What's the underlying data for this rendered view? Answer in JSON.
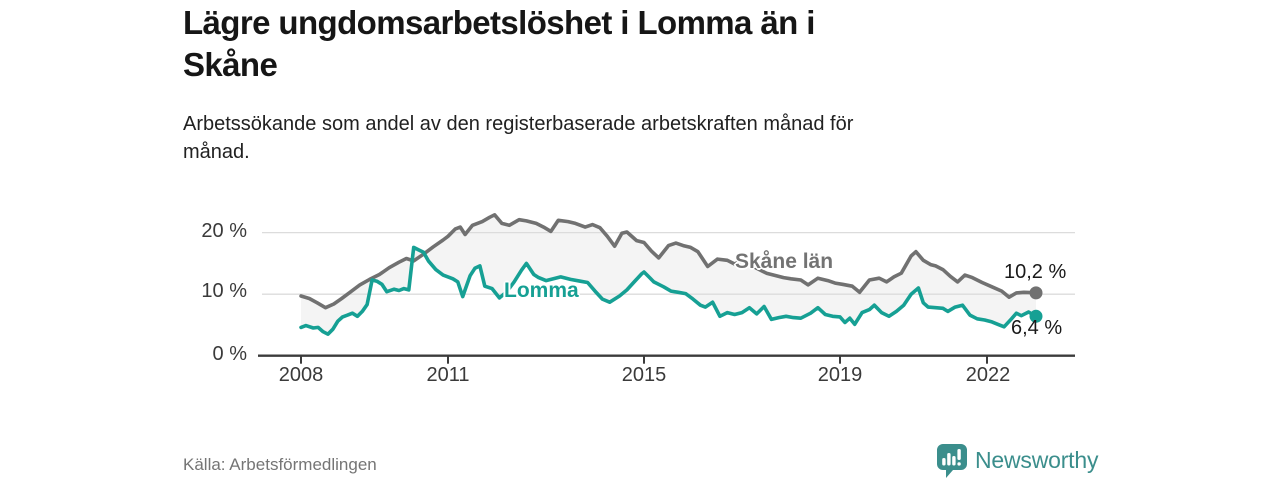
{
  "header": {
    "title": "Lägre ungdomsarbetslöshet i Lomma än i\nSkåne",
    "subtitle": "Arbetssökande som andel av den registerbaserade arbetskraften månad för\nmånad."
  },
  "footer": {
    "source": "Källa: Arbetsförmedlingen",
    "brand": "Newsworthy",
    "brand_color": "#3b8e8c"
  },
  "chart_data": {
    "type": "line",
    "title": "Lägre ungdomsarbetslöshet i Lomma än i Skåne",
    "ylabel": "Arbetssökande som andel av den registerbaserade arbetskraften",
    "x_unit": "månad (decimalår)",
    "ylim": [
      0,
      24
    ],
    "xlim": [
      2008,
      2023.3
    ],
    "grid": "horizontal",
    "yticks": [
      "0 %",
      "10 %",
      "20 %"
    ],
    "xticks": [
      "2008",
      "2011",
      "2015",
      "2019",
      "2022"
    ],
    "fill_between_color": "#f4f4f4",
    "axis_color": "#3b3b3b",
    "gridline_color": "#dcdcdc",
    "series": [
      {
        "name": "Skåne län",
        "color": "#717171",
        "end_label": "10,2 %",
        "end_value": 10.2,
        "points": [
          [
            2008.0,
            9.7
          ],
          [
            2008.17,
            9.3
          ],
          [
            2008.33,
            8.6
          ],
          [
            2008.5,
            7.8
          ],
          [
            2008.67,
            8.4
          ],
          [
            2008.83,
            9.3
          ],
          [
            2009.0,
            10.3
          ],
          [
            2009.2,
            11.5
          ],
          [
            2009.4,
            12.4
          ],
          [
            2009.6,
            13.2
          ],
          [
            2009.8,
            14.3
          ],
          [
            2010.0,
            15.2
          ],
          [
            2010.15,
            15.8
          ],
          [
            2010.3,
            15.4
          ],
          [
            2010.5,
            16.5
          ],
          [
            2010.7,
            17.7
          ],
          [
            2010.9,
            18.8
          ],
          [
            2011.0,
            19.4
          ],
          [
            2011.15,
            20.6
          ],
          [
            2011.25,
            20.9
          ],
          [
            2011.35,
            19.7
          ],
          [
            2011.5,
            21.2
          ],
          [
            2011.7,
            21.8
          ],
          [
            2011.85,
            22.5
          ],
          [
            2011.95,
            22.9
          ],
          [
            2012.1,
            21.5
          ],
          [
            2012.25,
            21.2
          ],
          [
            2012.45,
            22.1
          ],
          [
            2012.6,
            21.9
          ],
          [
            2012.8,
            21.5
          ],
          [
            2012.95,
            20.9
          ],
          [
            2013.1,
            20.2
          ],
          [
            2013.25,
            22.0
          ],
          [
            2013.45,
            21.8
          ],
          [
            2013.6,
            21.5
          ],
          [
            2013.8,
            20.9
          ],
          [
            2013.95,
            21.3
          ],
          [
            2014.1,
            20.8
          ],
          [
            2014.25,
            19.4
          ],
          [
            2014.4,
            17.8
          ],
          [
            2014.55,
            19.9
          ],
          [
            2014.65,
            20.1
          ],
          [
            2014.85,
            18.7
          ],
          [
            2015.0,
            18.4
          ],
          [
            2015.15,
            17.0
          ],
          [
            2015.3,
            15.9
          ],
          [
            2015.5,
            17.9
          ],
          [
            2015.65,
            18.3
          ],
          [
            2015.8,
            17.9
          ],
          [
            2015.95,
            17.6
          ],
          [
            2016.1,
            16.9
          ],
          [
            2016.3,
            14.5
          ],
          [
            2016.5,
            15.7
          ],
          [
            2016.7,
            15.5
          ],
          [
            2016.85,
            14.9
          ],
          [
            2016.95,
            15.3
          ],
          [
            2017.1,
            15.2
          ],
          [
            2017.3,
            14.2
          ],
          [
            2017.5,
            13.4
          ],
          [
            2017.7,
            13.0
          ],
          [
            2017.85,
            12.7
          ],
          [
            2018.0,
            12.5
          ],
          [
            2018.2,
            12.3
          ],
          [
            2018.35,
            11.5
          ],
          [
            2018.55,
            12.6
          ],
          [
            2018.75,
            12.2
          ],
          [
            2018.9,
            11.8
          ],
          [
            2019.05,
            11.6
          ],
          [
            2019.25,
            11.3
          ],
          [
            2019.4,
            10.3
          ],
          [
            2019.6,
            12.3
          ],
          [
            2019.8,
            12.6
          ],
          [
            2019.95,
            12.0
          ],
          [
            2020.1,
            12.8
          ],
          [
            2020.25,
            13.4
          ],
          [
            2020.45,
            16.2
          ],
          [
            2020.55,
            16.9
          ],
          [
            2020.7,
            15.5
          ],
          [
            2020.85,
            14.8
          ],
          [
            2020.95,
            14.6
          ],
          [
            2021.1,
            14.0
          ],
          [
            2021.25,
            12.9
          ],
          [
            2021.4,
            12.0
          ],
          [
            2021.55,
            13.1
          ],
          [
            2021.7,
            12.7
          ],
          [
            2021.9,
            11.9
          ],
          [
            2022.1,
            11.2
          ],
          [
            2022.3,
            10.5
          ],
          [
            2022.45,
            9.5
          ],
          [
            2022.6,
            10.2
          ],
          [
            2022.75,
            10.3
          ],
          [
            2022.9,
            10.25
          ],
          [
            2023.0,
            10.2
          ]
        ]
      },
      {
        "name": "Lomma",
        "color": "#16a094",
        "end_label": "6,4 %",
        "end_value": 6.4,
        "points": [
          [
            2008.0,
            4.6
          ],
          [
            2008.1,
            4.9
          ],
          [
            2008.25,
            4.5
          ],
          [
            2008.35,
            4.6
          ],
          [
            2008.45,
            3.9
          ],
          [
            2008.55,
            3.5
          ],
          [
            2008.65,
            4.3
          ],
          [
            2008.75,
            5.6
          ],
          [
            2008.85,
            6.3
          ],
          [
            2008.95,
            6.6
          ],
          [
            2009.05,
            6.9
          ],
          [
            2009.15,
            6.4
          ],
          [
            2009.25,
            7.2
          ],
          [
            2009.35,
            8.3
          ],
          [
            2009.45,
            12.3
          ],
          [
            2009.55,
            12.1
          ],
          [
            2009.65,
            11.6
          ],
          [
            2009.75,
            10.4
          ],
          [
            2009.9,
            10.8
          ],
          [
            2010.0,
            10.6
          ],
          [
            2010.1,
            10.9
          ],
          [
            2010.2,
            10.7
          ],
          [
            2010.3,
            17.6
          ],
          [
            2010.4,
            17.2
          ],
          [
            2010.5,
            16.8
          ],
          [
            2010.6,
            15.4
          ],
          [
            2010.75,
            14.0
          ],
          [
            2010.9,
            13.1
          ],
          [
            2011.0,
            12.8
          ],
          [
            2011.1,
            12.5
          ],
          [
            2011.2,
            12.0
          ],
          [
            2011.3,
            9.6
          ],
          [
            2011.45,
            13.0
          ],
          [
            2011.55,
            14.2
          ],
          [
            2011.65,
            14.6
          ],
          [
            2011.75,
            11.3
          ],
          [
            2011.9,
            10.9
          ],
          [
            2012.05,
            9.4
          ],
          [
            2012.2,
            10.4
          ],
          [
            2012.35,
            12.0
          ],
          [
            2012.5,
            13.9
          ],
          [
            2012.6,
            15.0
          ],
          [
            2012.75,
            13.2
          ],
          [
            2012.85,
            12.7
          ],
          [
            2013.0,
            12.2
          ],
          [
            2013.15,
            12.5
          ],
          [
            2013.3,
            12.8
          ],
          [
            2013.5,
            12.4
          ],
          [
            2013.7,
            12.1
          ],
          [
            2013.85,
            11.9
          ],
          [
            2014.0,
            10.5
          ],
          [
            2014.15,
            9.2
          ],
          [
            2014.3,
            8.7
          ],
          [
            2014.5,
            9.7
          ],
          [
            2014.65,
            10.7
          ],
          [
            2014.8,
            12.0
          ],
          [
            2014.95,
            13.3
          ],
          [
            2015.0,
            13.6
          ],
          [
            2015.1,
            12.8
          ],
          [
            2015.2,
            12.0
          ],
          [
            2015.4,
            11.2
          ],
          [
            2015.55,
            10.5
          ],
          [
            2015.7,
            10.3
          ],
          [
            2015.85,
            10.1
          ],
          [
            2016.0,
            9.2
          ],
          [
            2016.15,
            8.2
          ],
          [
            2016.25,
            7.9
          ],
          [
            2016.4,
            8.7
          ],
          [
            2016.55,
            6.4
          ],
          [
            2016.7,
            7.0
          ],
          [
            2016.85,
            6.7
          ],
          [
            2017.0,
            7.0
          ],
          [
            2017.15,
            7.8
          ],
          [
            2017.3,
            6.8
          ],
          [
            2017.45,
            8.0
          ],
          [
            2017.6,
            5.9
          ],
          [
            2017.75,
            6.2
          ],
          [
            2017.9,
            6.4
          ],
          [
            2018.05,
            6.2
          ],
          [
            2018.2,
            6.1
          ],
          [
            2018.4,
            6.9
          ],
          [
            2018.55,
            7.8
          ],
          [
            2018.7,
            6.7
          ],
          [
            2018.85,
            6.4
          ],
          [
            2019.0,
            6.3
          ],
          [
            2019.1,
            5.4
          ],
          [
            2019.2,
            6.1
          ],
          [
            2019.3,
            5.1
          ],
          [
            2019.45,
            7.0
          ],
          [
            2019.6,
            7.5
          ],
          [
            2019.7,
            8.2
          ],
          [
            2019.85,
            7.0
          ],
          [
            2020.0,
            6.4
          ],
          [
            2020.15,
            7.2
          ],
          [
            2020.3,
            8.2
          ],
          [
            2020.45,
            10.0
          ],
          [
            2020.6,
            11.0
          ],
          [
            2020.7,
            8.6
          ],
          [
            2020.8,
            7.9
          ],
          [
            2020.95,
            7.8
          ],
          [
            2021.1,
            7.7
          ],
          [
            2021.2,
            7.2
          ],
          [
            2021.35,
            7.9
          ],
          [
            2021.5,
            8.2
          ],
          [
            2021.65,
            6.6
          ],
          [
            2021.8,
            6.0
          ],
          [
            2021.95,
            5.8
          ],
          [
            2022.1,
            5.5
          ],
          [
            2022.25,
            5.0
          ],
          [
            2022.35,
            4.7
          ],
          [
            2022.5,
            6.0
          ],
          [
            2022.6,
            6.9
          ],
          [
            2022.7,
            6.5
          ],
          [
            2022.85,
            7.1
          ],
          [
            2023.0,
            6.4
          ]
        ]
      }
    ]
  }
}
